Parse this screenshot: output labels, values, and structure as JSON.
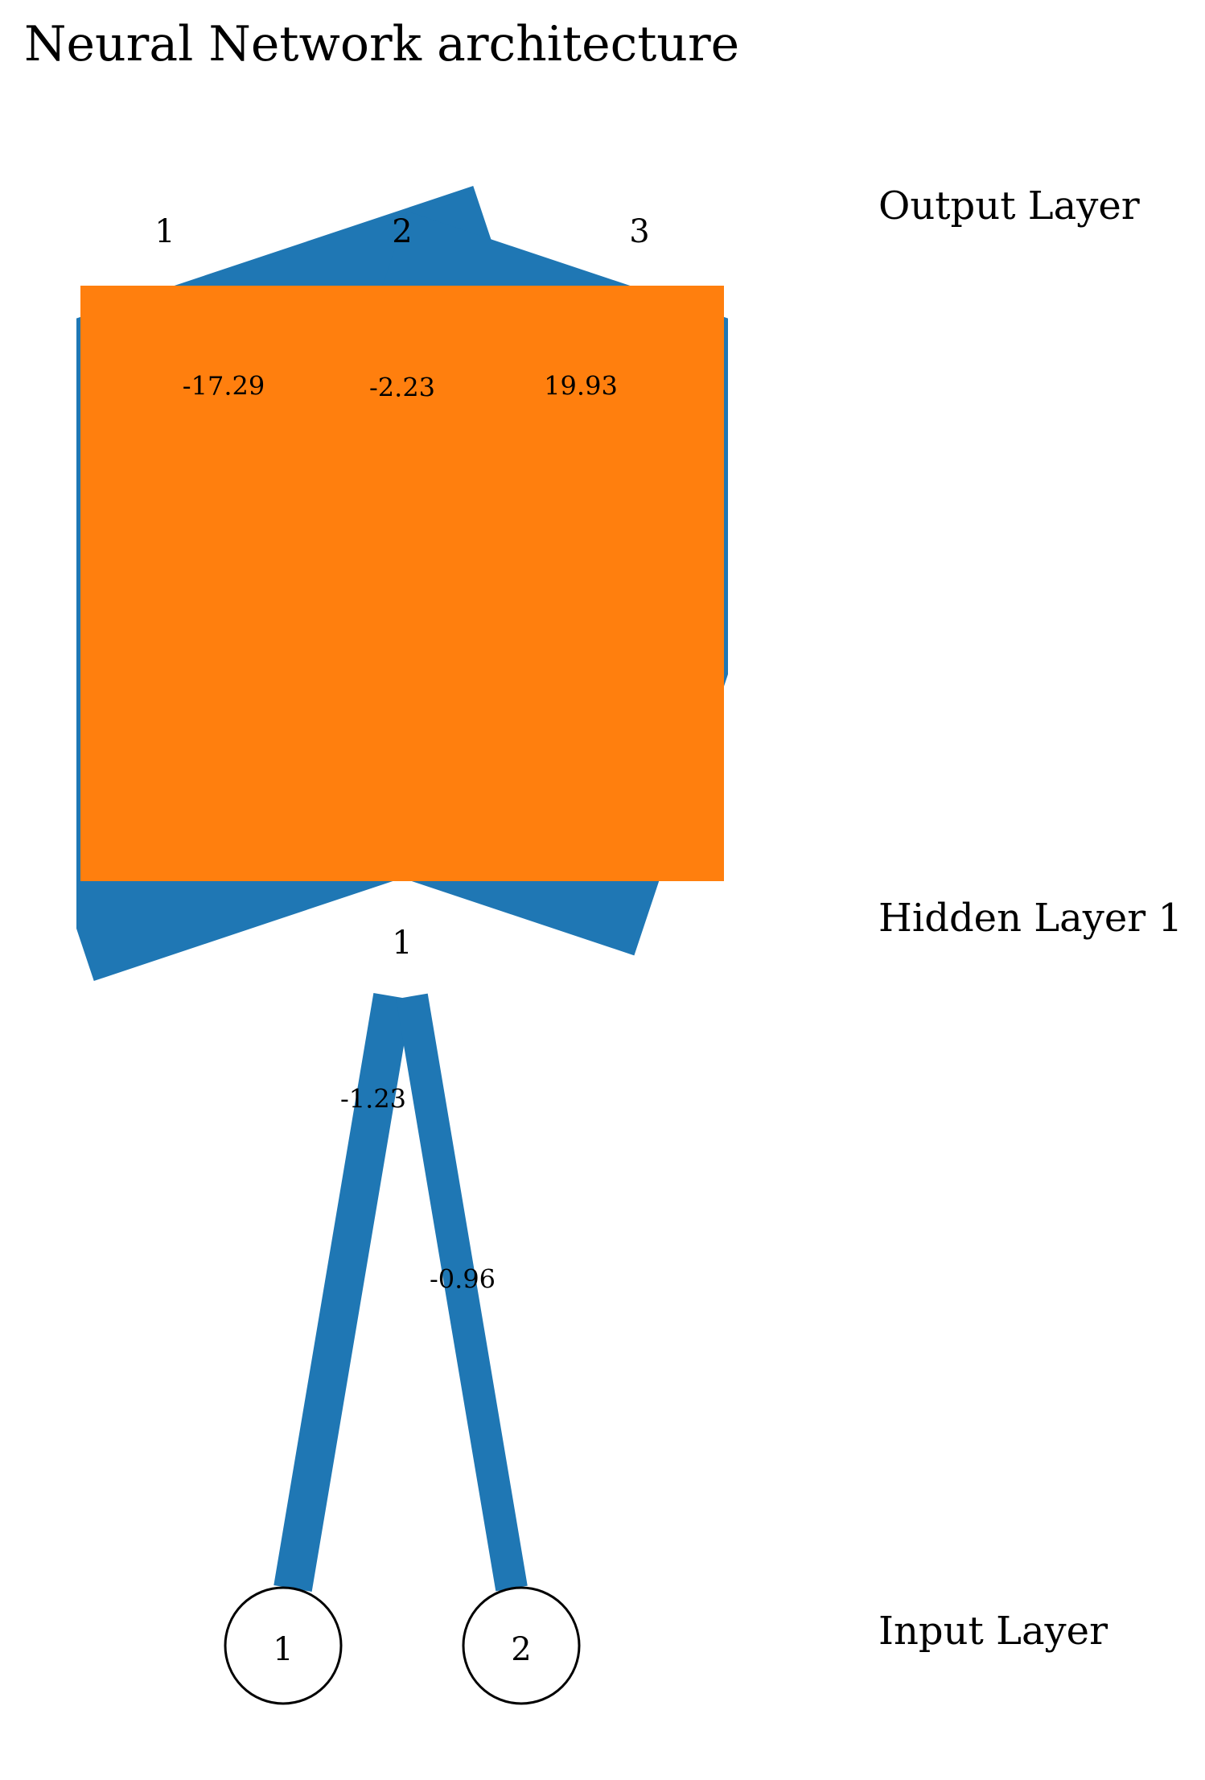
{
  "title": "Neural Network architecture",
  "colors": {
    "positive": "#1f77b4",
    "negative": "#ff7f0e",
    "node_stroke": "#000000",
    "node_fill": "#ffffff"
  },
  "layers": [
    {
      "label": "Input Layer",
      "nodes": [
        "1",
        "2"
      ]
    },
    {
      "label": "Hidden Layer 1",
      "nodes": [
        "1"
      ]
    },
    {
      "label": "Output Layer",
      "nodes": [
        "1",
        "2",
        "3"
      ]
    }
  ],
  "connections": [
    {
      "from_layer": 0,
      "from": 0,
      "to": 0,
      "color": "positive"
    },
    {
      "from_layer": 0,
      "from": 1,
      "to": 0,
      "color": "positive"
    },
    {
      "from_layer": 1,
      "from": 0,
      "to": 0,
      "color": "positive"
    },
    {
      "from_layer": 1,
      "from": 0,
      "to": 2,
      "color": "positive"
    },
    {
      "from_layer": 1,
      "from": 0,
      "to": 1,
      "color": "negative"
    }
  ],
  "bias_labels": {
    "hidden_1": "-1.23",
    "hidden_2": "-0.96",
    "output": [
      "-17.29",
      "-2.23",
      "19.93"
    ]
  }
}
